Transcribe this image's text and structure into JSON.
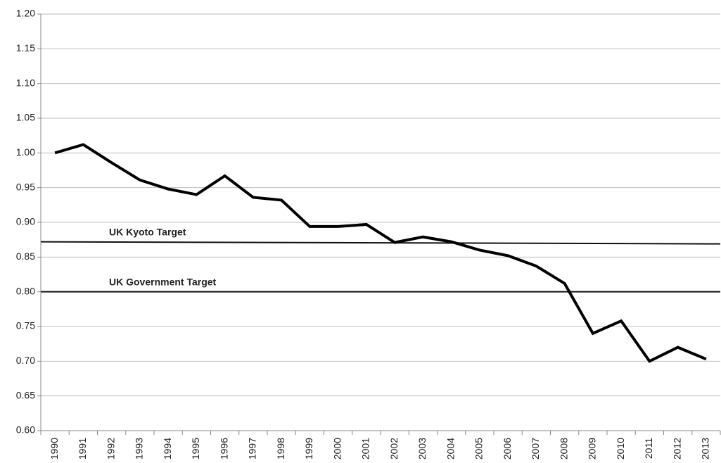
{
  "chart_data": {
    "type": "line",
    "categories": [
      "1990",
      "1991",
      "1992",
      "1993",
      "1994",
      "1995",
      "1996",
      "1997",
      "1998",
      "1999",
      "2000",
      "2001",
      "2002",
      "2003",
      "2004",
      "2005",
      "2006",
      "2007",
      "2008",
      "2009",
      "2010",
      "2011",
      "2012",
      "2013"
    ],
    "values": [
      1.0,
      1.012,
      0.986,
      0.961,
      0.948,
      0.94,
      0.967,
      0.936,
      0.932,
      0.894,
      0.894,
      0.897,
      0.871,
      0.879,
      0.872,
      0.86,
      0.852,
      0.837,
      0.812,
      0.74,
      0.758,
      0.7,
      0.72,
      0.703
    ],
    "color": "#000000",
    "ylim": [
      0.6,
      1.2
    ],
    "yticks": [
      {
        "value": 0.6,
        "label": "0.60"
      },
      {
        "value": 0.65,
        "label": "0.65"
      },
      {
        "value": 0.7,
        "label": "0.70"
      },
      {
        "value": 0.75,
        "label": "0.75"
      },
      {
        "value": 0.8,
        "label": "0.80"
      },
      {
        "value": 0.85,
        "label": "0.85"
      },
      {
        "value": 0.9,
        "label": "0.90"
      },
      {
        "value": 0.95,
        "label": "0.95"
      },
      {
        "value": 1.0,
        "label": "1.00"
      },
      {
        "value": 1.05,
        "label": "1.05"
      },
      {
        "value": 1.1,
        "label": "1.10"
      },
      {
        "value": 1.15,
        "label": "1.15"
      },
      {
        "value": 1.2,
        "label": "1.20"
      }
    ],
    "grid": true,
    "reference_lines": [
      {
        "label": "UK Kyoto Target",
        "start": 0.872,
        "end": 0.869
      },
      {
        "label": "UK Government Target",
        "start": 0.8,
        "end": 0.8
      }
    ]
  }
}
